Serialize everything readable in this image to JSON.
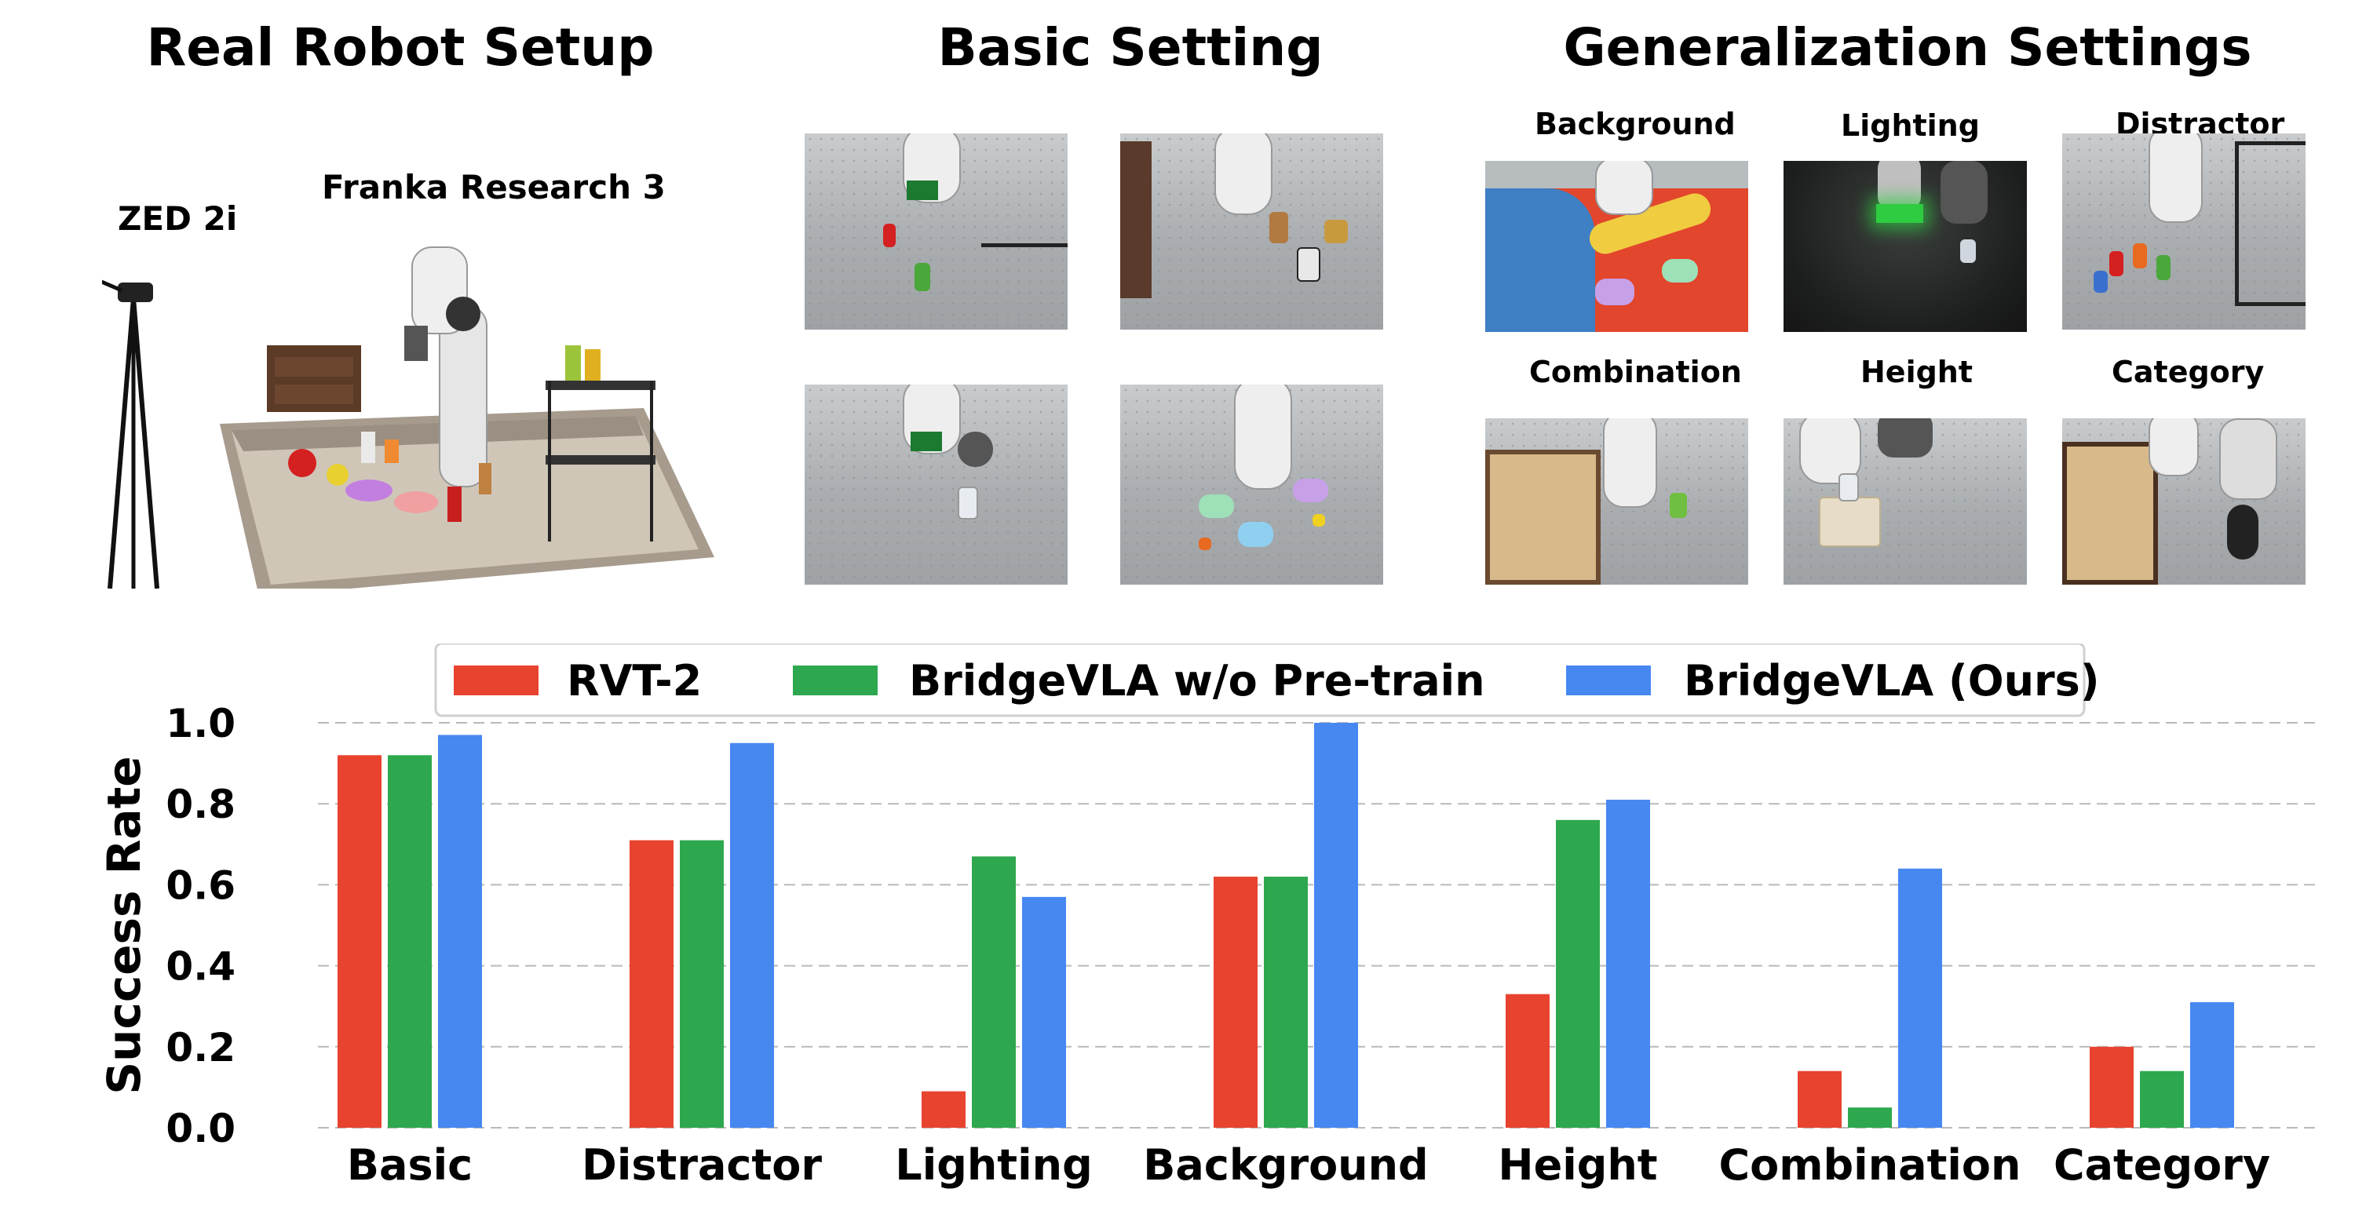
{
  "headers": {
    "real_setup": "Real Robot Setup",
    "basic_setting": "Basic Setting",
    "generalization": "Generalization Settings"
  },
  "real_setup_labels": {
    "camera": "ZED 2i",
    "robot": "Franka Research 3"
  },
  "generalization_labels": [
    "Background",
    "Lighting",
    "Distractor",
    "Combination",
    "Height",
    "Category"
  ],
  "chart_data": {
    "type": "bar",
    "categories": [
      "Basic",
      "Distractor",
      "Lighting",
      "Background",
      "Height",
      "Combination",
      "Category"
    ],
    "series": [
      {
        "name": "RVT-2",
        "color": "#e8432f",
        "values": [
          0.92,
          0.71,
          0.09,
          0.62,
          0.33,
          0.14,
          0.2
        ]
      },
      {
        "name": "BridgeVLA w/o Pre-train",
        "color": "#2ea84e",
        "values": [
          0.92,
          0.71,
          0.67,
          0.62,
          0.76,
          0.05,
          0.14
        ]
      },
      {
        "name": "BridgeVLA (Ours)",
        "color": "#4688f0",
        "values": [
          0.97,
          0.95,
          0.57,
          1.0,
          0.81,
          0.64,
          0.31
        ]
      }
    ],
    "ylabel": "Success Rate",
    "xlabel": "",
    "ylim": [
      0,
      1.0
    ],
    "yticks": [
      "0.0",
      "0.2",
      "0.4",
      "0.6",
      "0.8",
      "1.0"
    ],
    "grid": "horizontal dashed",
    "legend": "top-center"
  }
}
